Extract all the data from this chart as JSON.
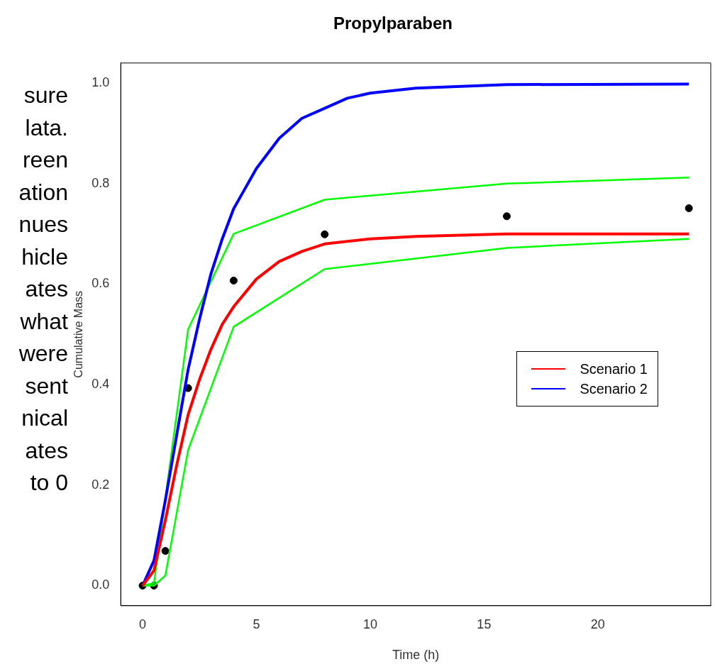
{
  "chart_data": {
    "type": "line",
    "title": "Propylparaben",
    "xlabel": "Time (h)",
    "ylabel": "Cumulative Mass",
    "annotations": [
      "sure",
      "lata.",
      "reen",
      "ation",
      "nues",
      "hicle",
      "ates",
      "what",
      "were",
      "sent",
      "nical",
      "ates",
      "to 0"
    ],
    "series": [
      {
        "name": "Scenario 1",
        "color": "#ff0000",
        "x": [
          0,
          0.5,
          1,
          1.5,
          2,
          2.5,
          3,
          3.5,
          4,
          5,
          6,
          7,
          8,
          10,
          12,
          16,
          24
        ],
        "values": [
          0,
          0.03,
          0.13,
          0.24,
          0.34,
          0.41,
          0.47,
          0.52,
          0.555,
          0.61,
          0.645,
          0.665,
          0.68,
          0.69,
          0.695,
          0.7,
          0.7
        ]
      },
      {
        "name": "Scenario 2",
        "color": "#0000ff",
        "x": [
          0,
          0.5,
          1,
          1.5,
          2,
          2.5,
          3,
          3.5,
          4,
          4.5,
          5,
          6,
          7,
          8,
          9,
          10,
          12,
          16,
          24
        ],
        "values": [
          0,
          0.05,
          0.17,
          0.3,
          0.43,
          0.53,
          0.62,
          0.69,
          0.75,
          0.79,
          0.83,
          0.89,
          0.93,
          0.95,
          0.97,
          0.98,
          0.99,
          0.997,
          0.998
        ]
      },
      {
        "color": "#00ff00",
        "x": [
          0,
          0.5,
          2,
          4,
          8,
          16,
          24
        ],
        "values": [
          0,
          0.005,
          0.51,
          0.7,
          0.768,
          0.8,
          0.812
        ]
      },
      {
        "color": "#00ff00",
        "x": [
          0,
          0.5,
          1,
          2,
          4,
          8,
          16,
          24
        ],
        "values": [
          0,
          0,
          0.02,
          0.27,
          0.515,
          0.63,
          0.672,
          0.69
        ]
      },
      {
        "type": "scatter",
        "marker": "circle",
        "color": "#000000",
        "x": [
          0,
          0.5,
          1,
          2,
          4,
          8,
          16,
          24
        ],
        "values": [
          0,
          0,
          0.069,
          0.393,
          0.607,
          0.699,
          0.735,
          0.751
        ]
      }
    ],
    "xlim": [
      -0.96,
      24.96
    ],
    "xticks": [
      0,
      5,
      10,
      15,
      20
    ],
    "ylim": [
      -0.04,
      1.04
    ],
    "yticks": [
      {
        "value": 0,
        "label": "0.0"
      },
      0.2,
      0.4,
      0.6,
      0.8,
      {
        "value": 1,
        "label": "1.0"
      }
    ],
    "grid": false,
    "legend": "right",
    "line_style": "solid"
  }
}
